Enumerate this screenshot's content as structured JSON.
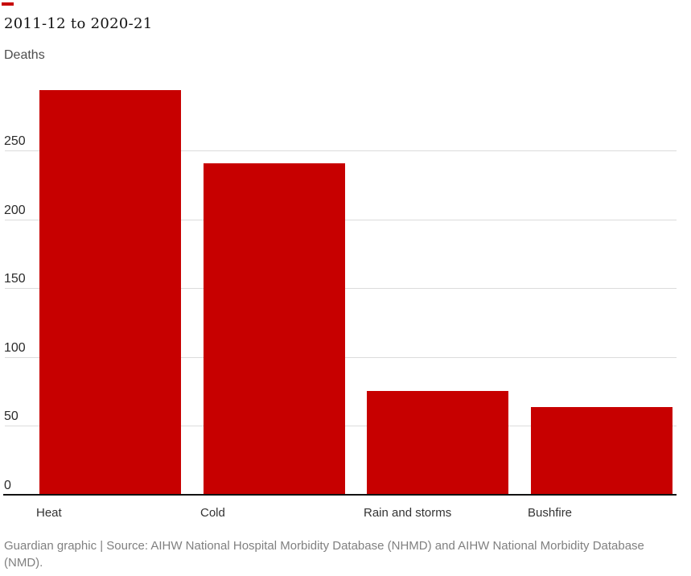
{
  "header": {
    "title": "2011-12 to 2020-21",
    "units_label": "Deaths"
  },
  "footer": {
    "caption": "Guardian graphic | Source: AIHW National Hospital Morbidity Database (NHMD) and AIHW National Morbidity Database (NMD)."
  },
  "colors": {
    "bar": "#c70000",
    "accent": "#c70000",
    "grid": "#dcdcdc",
    "axis": "#121212",
    "tick_text": "#2b2b2b",
    "category_text": "#333333",
    "title_text": "#121212",
    "units_text": "#4d4d4d",
    "footer_text": "#808080",
    "background": "#ffffff"
  },
  "chart_data": {
    "type": "bar",
    "title": "2011-12 to 2020-21",
    "ylabel": "Deaths",
    "xlabel": "",
    "categories": [
      "Heat",
      "Cold",
      "Rain and storms",
      "Bushfire"
    ],
    "values": [
      293,
      240,
      75,
      63
    ],
    "yticks": [
      0,
      50,
      100,
      150,
      200,
      250
    ],
    "ylim": [
      0,
      295
    ],
    "grid": true,
    "legend_position": "none",
    "bar_color": "#c70000"
  }
}
